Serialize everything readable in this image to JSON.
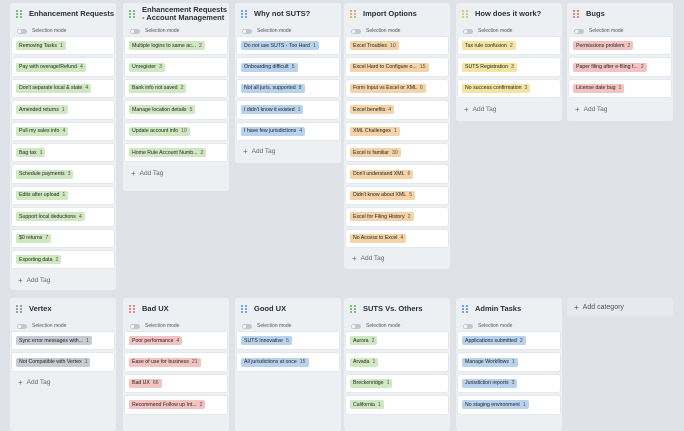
{
  "selection_label": "Selection mode",
  "add_tag_label": "Add Tag",
  "add_category_label": "Add category",
  "colors": {
    "green": "#cfe8c2",
    "blue": "#b9d2ee",
    "orange": "#f5d3a8",
    "yellow": "#f4e3a1",
    "red": "#f2c3c0",
    "gray": "#c8ccd2"
  },
  "columns": [
    {
      "title": "Enhancement Requests",
      "dot": "#58b15b",
      "color": "green",
      "cards": [
        {
          "label": "Removing Tasks",
          "count": "1"
        },
        {
          "label": "Pay with overage/Refund",
          "count": "4"
        },
        {
          "label": "Don't separate local & state",
          "count": "4"
        },
        {
          "label": "Amended returns",
          "count": "1"
        },
        {
          "label": "Pull my sales info",
          "count": "4"
        },
        {
          "label": "Bag tax",
          "count": "1"
        },
        {
          "label": "Schedule payments",
          "count": "3"
        },
        {
          "label": "Edits after upload",
          "count": "1"
        },
        {
          "label": "Support local deductions",
          "count": "4"
        },
        {
          "label": "$0 returns",
          "count": "7"
        },
        {
          "label": "Exporting data",
          "count": "2"
        }
      ]
    },
    {
      "title": "Enhancement Requests - Account Management",
      "dot": "#58b15b",
      "color": "green",
      "cards": [
        {
          "label": "Multiple logins to same ac...",
          "count": "2"
        },
        {
          "label": "Unregister",
          "count": "3"
        },
        {
          "label": "Bank info not saved",
          "count": "2"
        },
        {
          "label": "Manage location details",
          "count": "5"
        },
        {
          "label": "Update account info",
          "count": "10"
        },
        {
          "label": "Home Rule Account Numb...",
          "count": "2"
        }
      ]
    },
    {
      "title": "Why not SUTS?",
      "dot": "#4c8fd9",
      "color": "blue",
      "cards": [
        {
          "label": "Do not use SUTS - Too Hard",
          "count": "1"
        },
        {
          "label": "Onboarding difficult",
          "count": "5"
        },
        {
          "label": "Not all juris. supported",
          "count": "8"
        },
        {
          "label": "I didn't know it existed",
          "count": "1"
        },
        {
          "label": "I have few jurisdictions",
          "count": "4"
        }
      ]
    },
    {
      "title": "Import Options",
      "dot": "#e69a3d",
      "color": "orange",
      "cards": [
        {
          "label": "Excel Troubles",
          "count": "10"
        },
        {
          "label": "Excel Hard to Configure o...",
          "count": "15"
        },
        {
          "label": "Form Input vs Excel or XML",
          "count": "6"
        },
        {
          "label": "Excel benefits",
          "count": "4"
        },
        {
          "label": "XML Challenges",
          "count": "1"
        },
        {
          "label": "Excel is familiar",
          "count": "30"
        },
        {
          "label": "Don't understand XML",
          "count": "6"
        },
        {
          "label": "Didn't know about XML",
          "count": "5"
        },
        {
          "label": "Excel for Filing History",
          "count": "2"
        },
        {
          "label": "No Access to Excel",
          "count": "4"
        }
      ]
    },
    {
      "title": "How does it work?",
      "dot": "#e2c03e",
      "color": "yellow",
      "cards": [
        {
          "label": "Tax rule confusion",
          "count": "2"
        },
        {
          "label": "SUTS Registration",
          "count": "3"
        },
        {
          "label": "No success confirmation",
          "count": "3"
        }
      ]
    },
    {
      "title": "Bugs",
      "dot": "#e06a5e",
      "color": "red",
      "cards": [
        {
          "label": "Permissions problem",
          "count": "2"
        },
        {
          "label": "Paper filing after e-filing f...",
          "count": "2"
        },
        {
          "label": "License date bug",
          "count": "1"
        }
      ]
    },
    {
      "title": "Vertex",
      "dot": "#7d8591",
      "color": "gray",
      "cards": [
        {
          "label": "Sync error messages with...",
          "count": "1"
        },
        {
          "label": "Not Compatible with Vertex",
          "count": "1"
        }
      ]
    },
    {
      "title": "Bad UX",
      "dot": "#e06a5e",
      "color": "red",
      "cards": [
        {
          "label": "Poor performance",
          "count": "4"
        },
        {
          "label": "Ease of use for business",
          "count": "21"
        },
        {
          "label": "Bad UX",
          "count": "66"
        },
        {
          "label": "Recommend Follow up Int...",
          "count": "2"
        }
      ]
    },
    {
      "title": "Good UX",
      "dot": "#4c8fd9",
      "color": "blue",
      "cards": [
        {
          "label": "SUTS Innovative",
          "count": "5"
        },
        {
          "label": "All jurisdictions at once",
          "count": "15"
        }
      ]
    },
    {
      "title": "SUTS Vs. Others",
      "dot": "#58b15b",
      "color": "green",
      "cards": [
        {
          "label": "Aurora",
          "count": "2"
        },
        {
          "label": "Arvada",
          "count": "1"
        },
        {
          "label": "Breckenridge",
          "count": "1"
        },
        {
          "label": "California",
          "count": "1"
        }
      ]
    },
    {
      "title": "Admin Tasks",
      "dot": "#4c8fd9",
      "color": "blue",
      "cards": [
        {
          "label": "Applications submitted",
          "count": "2"
        },
        {
          "label": "Manage Workflows",
          "count": "1"
        },
        {
          "label": "Jurisdiction reports",
          "count": "3"
        },
        {
          "label": "No staging environment",
          "count": "1"
        }
      ]
    }
  ]
}
